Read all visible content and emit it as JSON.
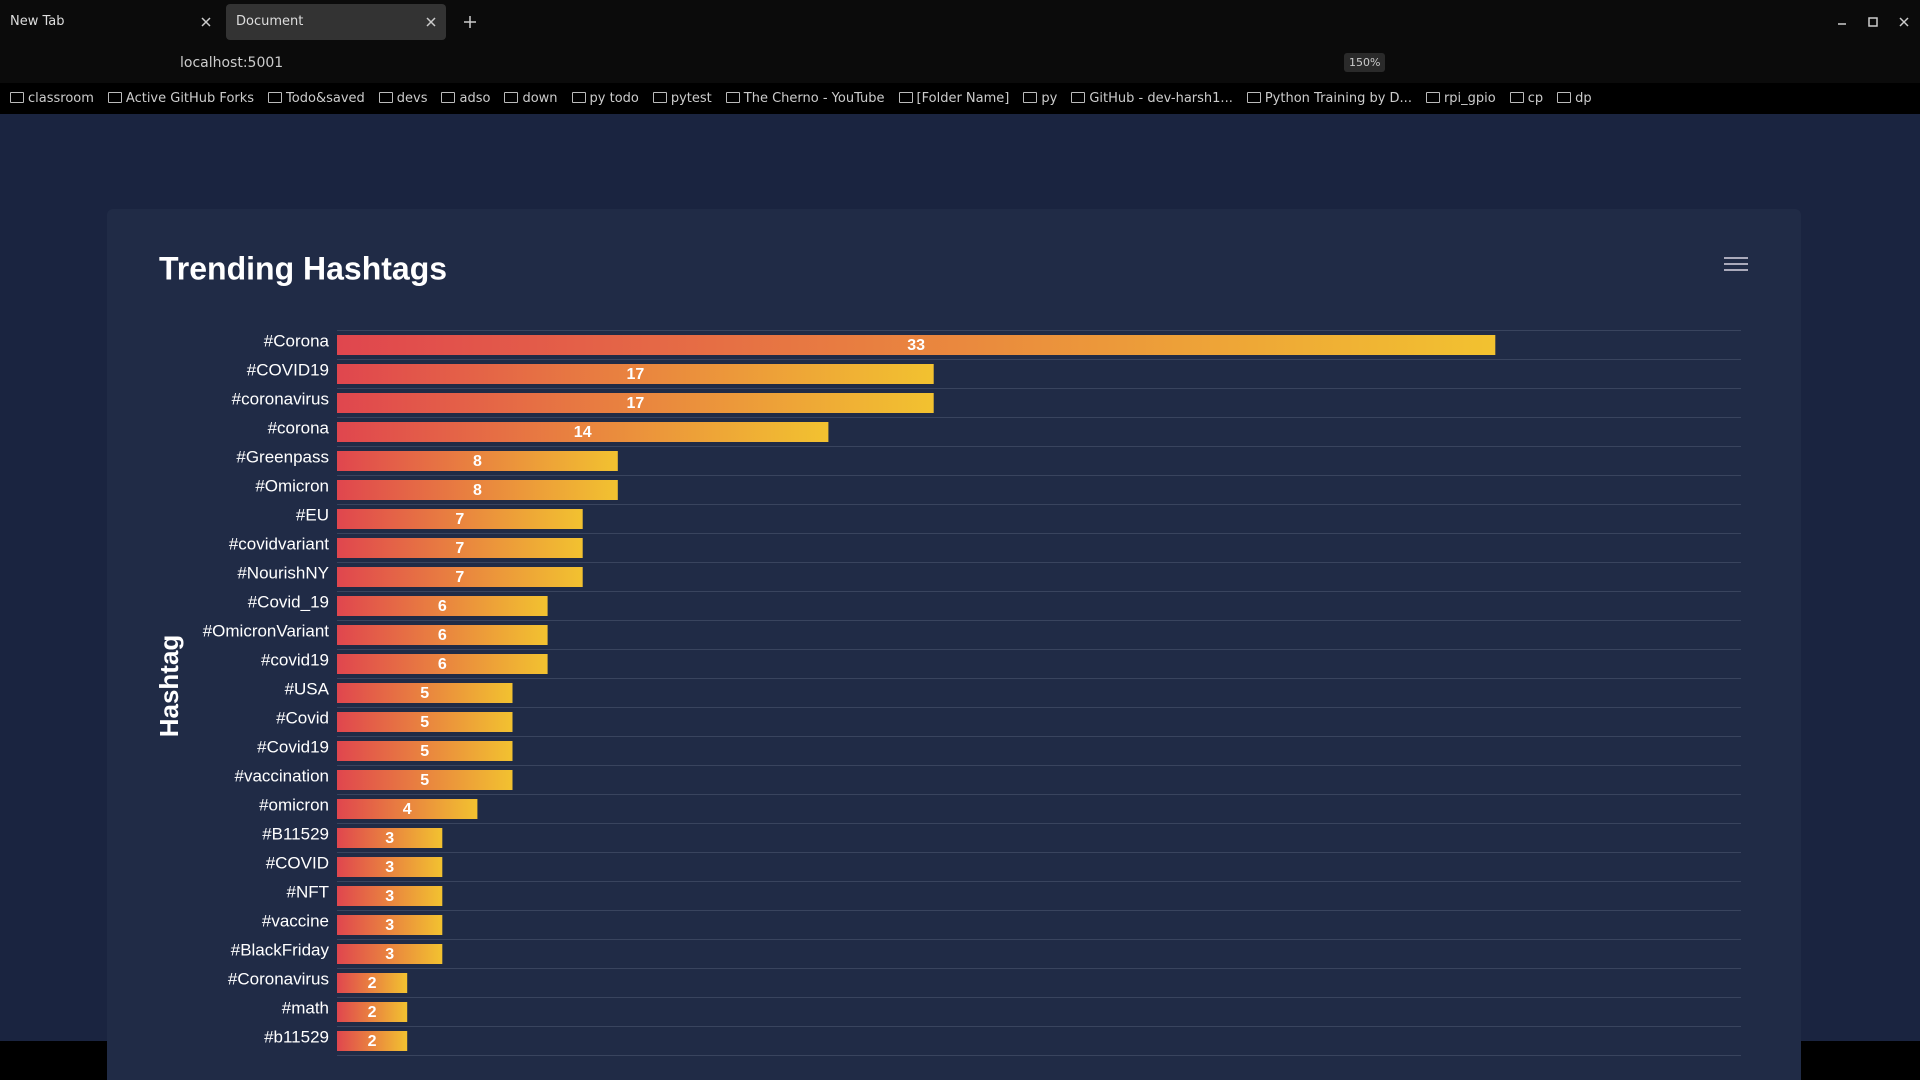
{
  "browser": {
    "tabs": [
      "New Tab",
      "Document"
    ],
    "url": "localhost:5001",
    "zoom": "150%",
    "bookmarks": [
      "classroom",
      "Active GitHub Forks",
      "Todo&saved",
      "devs",
      "adso",
      "down",
      "py todo",
      "pytest",
      "The Cherno - YouTube",
      "[Folder Name]",
      "py",
      "GitHub - dev-harsh1...",
      "Python Training by D...",
      "rpi_gpio",
      "cp",
      "dp"
    ]
  },
  "chart_data": {
    "type": "bar",
    "orientation": "horizontal",
    "title": "Trending Hashtags",
    "y_label": "Hashtag",
    "categories": [
      "#Corona",
      "#COVID19",
      "#coronavirus",
      "#corona",
      "#Greenpass",
      "#Omicron",
      "#EU",
      "#covidvariant",
      "#NourishNY",
      "#Covid_19",
      "#OmicronVariant",
      "#covid19",
      "#USA",
      "#Covid",
      "#Covid19",
      "#vaccination",
      "#omicron",
      "#B11529",
      "#COVID",
      "#NFT",
      "#vaccine",
      "#BlackFriday",
      "#Coronavirus",
      "#math",
      "#b11529"
    ],
    "values": [
      33,
      17,
      17,
      14,
      8,
      8,
      7,
      7,
      7,
      6,
      6,
      6,
      5,
      5,
      5,
      5,
      4,
      3,
      3,
      3,
      3,
      3,
      2,
      2,
      2
    ],
    "xlim": [
      0,
      40
    ],
    "colors": [
      "#e0464e",
      "#f2c230"
    ]
  }
}
